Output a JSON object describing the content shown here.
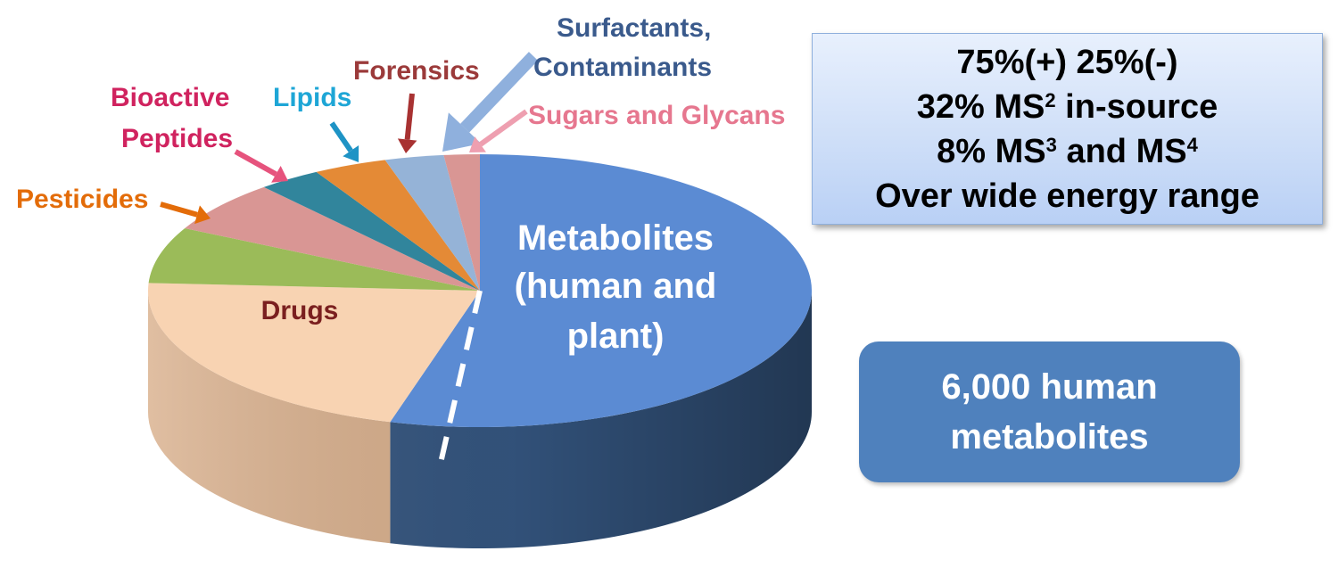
{
  "chart_data": {
    "type": "pie",
    "slices": [
      {
        "label": "Metabolites",
        "label_line2": "(human and",
        "label_line3": "plant)",
        "value": 53,
        "color": "#5b8bd3",
        "side_color": "#34557f",
        "label_color": "#ffffff"
      },
      {
        "label": "Drugs",
        "value": 21,
        "color": "#f8d3b2",
        "side_color": "#d9b08d",
        "label_color": "#7a1f1f"
      },
      {
        "label": "Pesticides",
        "value": 6.5,
        "color": "#9bbb59",
        "side_color": "#6d8a38",
        "label_color": "#e36c09"
      },
      {
        "label": "Bioactive",
        "label_line2": "Peptides",
        "value": 6,
        "color": "#d99694",
        "side_color": "#a86b69",
        "label_color": "#d0235f"
      },
      {
        "label": "Lipids",
        "value": 3,
        "color": "#31859c",
        "side_color": "#1d5a6b",
        "label_color": "#1ea6d6"
      },
      {
        "label": "Forensics",
        "value": 3.5,
        "color": "#e48a36",
        "side_color": "#a85f1c",
        "label_color": "#9b3a3a"
      },
      {
        "label": "Surfactants,",
        "label_line2": "Contaminants",
        "value": 2.8,
        "color": "#95b3d7",
        "side_color": "#6a89ad",
        "label_color": "#3a5a8c"
      },
      {
        "label": "Sugars and Glycans",
        "value": 1.7,
        "color": "#d99694",
        "side_color": "#a86b69",
        "label_color": "#e6778f"
      }
    ]
  },
  "stats_box": {
    "line1": "75%(+) 25%(-)",
    "line2_pre": "32% MS",
    "line2_sup": "2",
    "line2_post": " in-source",
    "line3_pre": "8% MS",
    "line3_sup": "3",
    "line3_mid": " and MS",
    "line3_sup2": "4",
    "line4": "Over wide energy range"
  },
  "human_box": {
    "line1": "6,000 human",
    "line2": "metabolites"
  }
}
